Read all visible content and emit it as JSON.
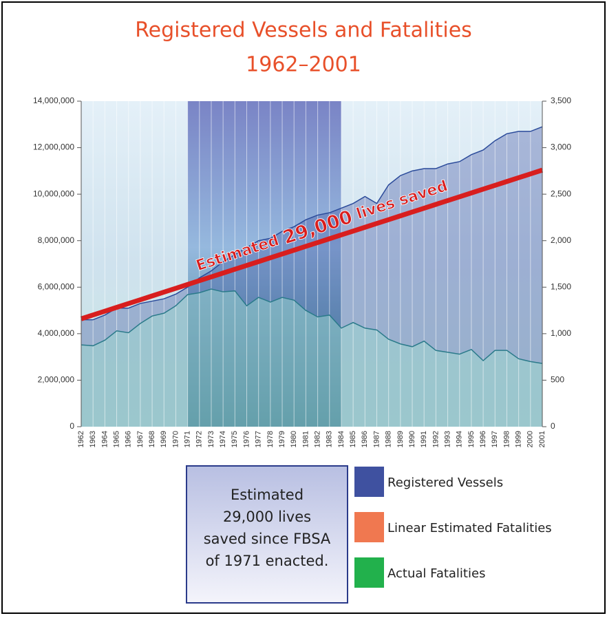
{
  "chart_data": {
    "type": "line",
    "title": [
      "Registered Vessels and Fatalities",
      "1962–2001"
    ],
    "categories": [
      "1962",
      "1963",
      "1964",
      "1965",
      "1966",
      "1967",
      "1968",
      "1969",
      "1970",
      "1971",
      "1972",
      "1973",
      "1974",
      "1975",
      "1976",
      "1977",
      "1978",
      "1979",
      "1980",
      "1981",
      "1982",
      "1983",
      "1984",
      "1985",
      "1986",
      "1987",
      "1988",
      "1989",
      "1990",
      "1991",
      "1992",
      "1993",
      "1994",
      "1995",
      "1996",
      "1997",
      "1998",
      "1999",
      "2000",
      "2001"
    ],
    "series": [
      {
        "name": "Registered Vessels",
        "color": "#3f51a0",
        "axis": "y",
        "values": [
          4600000,
          4600000,
          4800000,
          5100000,
          5100000,
          5300000,
          5400000,
          5500000,
          5700000,
          6000000,
          6400000,
          6700000,
          7100000,
          7400000,
          7700000,
          8000000,
          8100000,
          8400000,
          8600000,
          8900000,
          9100000,
          9200000,
          9400000,
          9600000,
          9900000,
          9600000,
          10400000,
          10800000,
          11000000,
          11100000,
          11100000,
          11300000,
          11400000,
          11700000,
          11900000,
          12300000,
          12600000,
          12700000,
          12700000,
          12900000
        ]
      },
      {
        "name": "Linear Estimated Fatalities",
        "color": "#f07850",
        "axis": "y2",
        "values": [
          1160,
          1201,
          1242,
          1283,
          1324,
          1365,
          1406,
          1447,
          1488,
          1529,
          1570,
          1611,
          1652,
          1693,
          1734,
          1775,
          1816,
          1857,
          1898,
          1939,
          1980,
          2021,
          2062,
          2103,
          2144,
          2185,
          2226,
          2267,
          2308,
          2349,
          2390,
          2431,
          2472,
          2513,
          2554,
          2595,
          2636,
          2677,
          2718,
          2759
        ]
      },
      {
        "name": "Actual Fatalities",
        "color": "#22b14c",
        "axis": "y2",
        "values": [
          880,
          870,
          930,
          1030,
          1010,
          1110,
          1190,
          1220,
          1300,
          1420,
          1440,
          1480,
          1450,
          1460,
          1300,
          1390,
          1340,
          1390,
          1360,
          1250,
          1180,
          1200,
          1060,
          1120,
          1060,
          1040,
          940,
          890,
          860,
          920,
          820,
          800,
          780,
          830,
          710,
          820,
          820,
          730,
          700,
          680
        ]
      }
    ],
    "ylim": [
      0,
      14000000
    ],
    "yticks": [
      0,
      {
        "value": 2000000,
        "label": "2,000,000"
      },
      {
        "value": 4000000,
        "label": "4,000,000"
      },
      {
        "value": 6000000,
        "label": "6,000,000"
      },
      {
        "value": 8000000,
        "label": "8,000,000"
      },
      {
        "value": 10000000,
        "label": "10,000,000"
      },
      {
        "value": 12000000,
        "label": "12,000,000"
      },
      {
        "value": 14000000,
        "label": "14,000,000"
      }
    ],
    "y2lim": [
      0,
      3500
    ],
    "y2ticks": [
      0,
      500,
      {
        "value": 1000,
        "label": "1,000"
      },
      {
        "value": 1500,
        "label": "1,500"
      },
      {
        "value": 2000,
        "label": "2,000"
      },
      {
        "value": 2500,
        "label": "2,500"
      },
      {
        "value": 3000,
        "label": "3,000"
      },
      {
        "value": 3500,
        "label": "3,500"
      }
    ],
    "highlight_range": [
      "1971",
      "1984"
    ],
    "annotation": [
      "Estimated",
      "29,000",
      "lives saved"
    ],
    "note": [
      "Estimated",
      "29,000 lives",
      "saved since FBSA",
      "of 1971 enacted."
    ]
  }
}
